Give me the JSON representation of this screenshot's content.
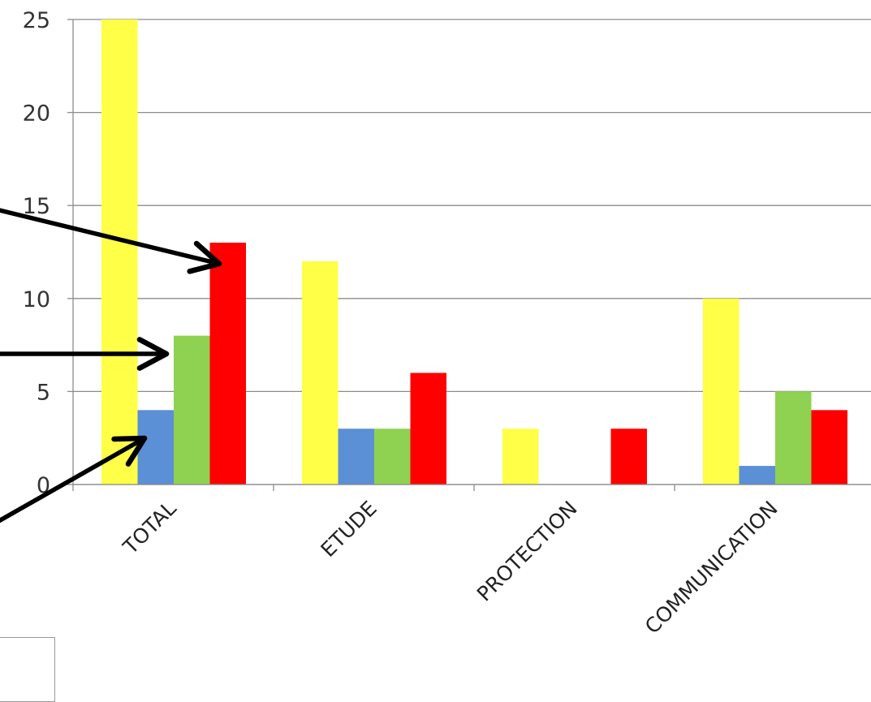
{
  "chart_data": {
    "type": "bar",
    "title": "",
    "xlabel": "",
    "ylabel": "",
    "categories": [
      "TOTAL",
      "ETUDE",
      "PROTECTION",
      "COMMUNICATION"
    ],
    "series": [
      {
        "color": "#ffff47",
        "values": [
          25,
          12,
          3,
          10
        ]
      },
      {
        "color": "#5b8fd6",
        "values": [
          4,
          3,
          0,
          1
        ]
      },
      {
        "color": "#8fd150",
        "values": [
          8,
          3,
          0,
          5
        ]
      },
      {
        "color": "#ff0000",
        "values": [
          13,
          6,
          3,
          4
        ]
      }
    ],
    "ylim": [
      0,
      25
    ],
    "yticks": [
      0,
      5,
      10,
      15,
      20,
      25
    ],
    "grid": true,
    "legend": "none",
    "annotations": [
      {
        "kind": "arrow",
        "points_to": "TOTAL red bar"
      },
      {
        "kind": "arrow",
        "points_to": "TOTAL green bar"
      },
      {
        "kind": "arrow",
        "points_to": "TOTAL blue bar"
      }
    ]
  }
}
